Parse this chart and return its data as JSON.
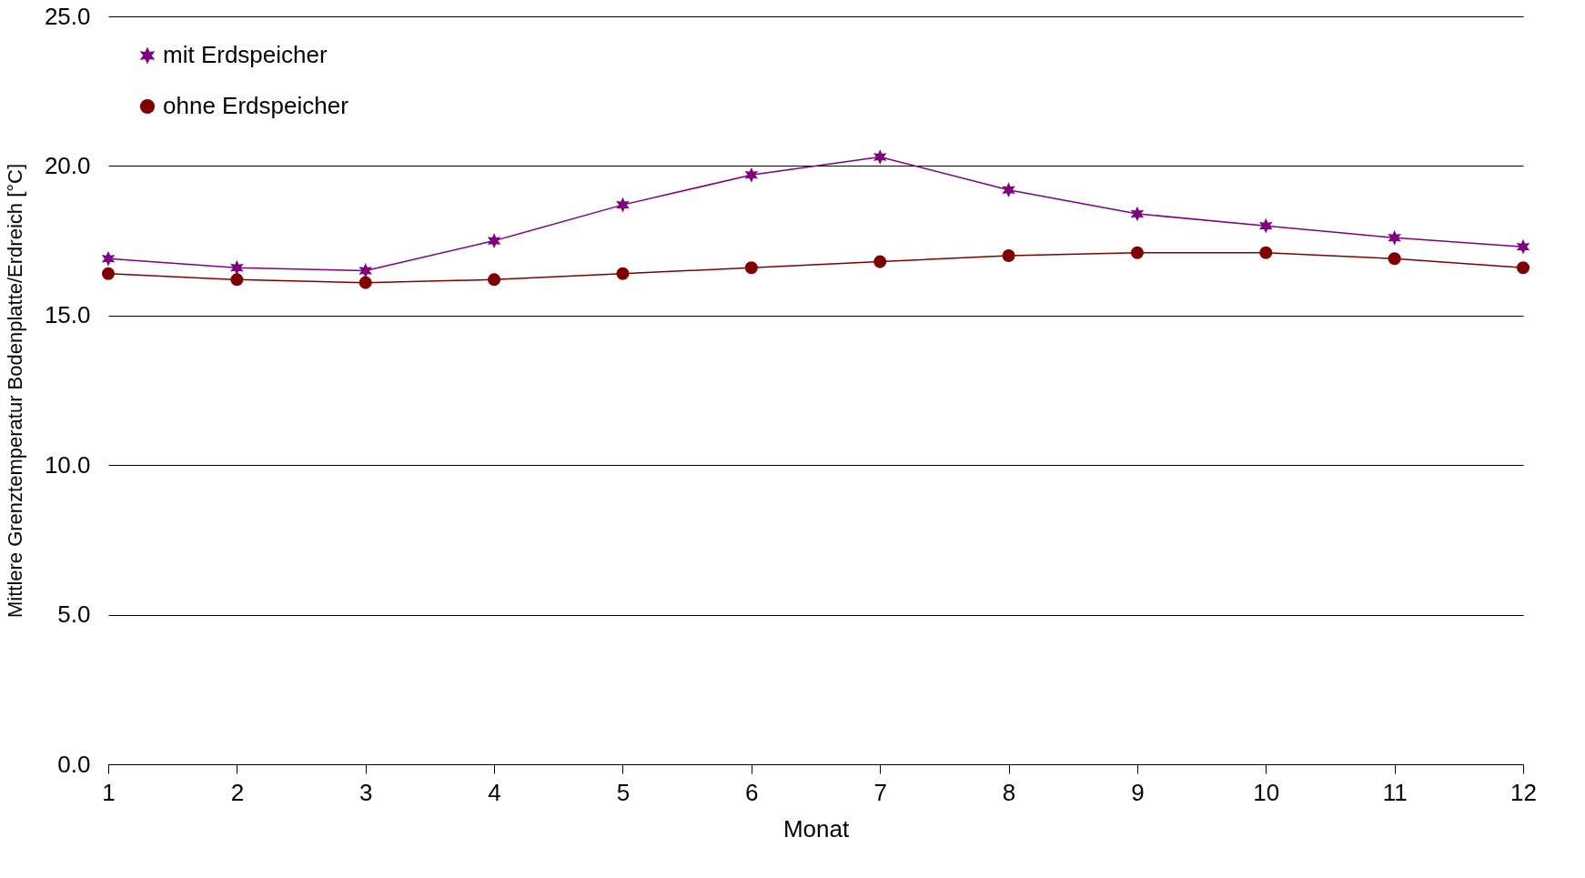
{
  "chart_data": {
    "type": "line",
    "xlabel": "Monat",
    "ylabel": "Mittlere Grenztemperatur Bodenplatte/Erdreich [°C]",
    "x": [
      1,
      2,
      3,
      4,
      5,
      6,
      7,
      8,
      9,
      10,
      11,
      12
    ],
    "xlim": [
      1,
      12
    ],
    "xticks": [
      1,
      2,
      3,
      4,
      5,
      6,
      7,
      8,
      9,
      10,
      11,
      12
    ],
    "ylim": [
      0,
      25
    ],
    "yticks": [
      {
        "value": 0,
        "label": "0.0"
      },
      {
        "value": 5,
        "label": "5.0"
      },
      {
        "value": 10,
        "label": "10.0"
      },
      {
        "value": 15,
        "label": "15.0"
      },
      {
        "value": 20,
        "label": "20.0"
      },
      {
        "value": 25,
        "label": "25.0"
      }
    ],
    "grid": "y",
    "legend": "top left",
    "series": [
      {
        "name": "mit Erdspeicher",
        "color": "#800080",
        "marker": "cross",
        "values": [
          16.9,
          16.6,
          16.5,
          17.5,
          18.7,
          19.7,
          20.3,
          19.2,
          18.4,
          18.0,
          17.6,
          17.3
        ]
      },
      {
        "name": "ohne Erdspeicher",
        "color": "#800000",
        "marker": "circle",
        "values": [
          16.4,
          16.2,
          16.1,
          16.2,
          16.4,
          16.6,
          16.8,
          17.0,
          17.1,
          17.1,
          16.9,
          16.6
        ]
      }
    ]
  }
}
